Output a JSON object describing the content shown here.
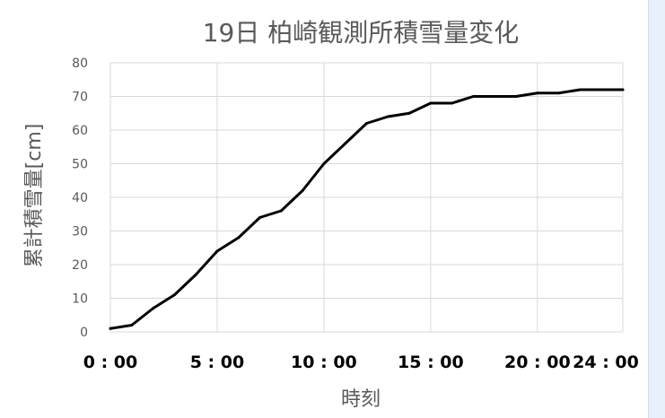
{
  "chart_data": {
    "type": "line",
    "title": "19日 柏崎観測所積雪量変化",
    "xlabel": "時刻",
    "ylabel": "累計積雪量[cm]",
    "x_ticks": [
      "0 : 00",
      "5 : 00",
      "10 : 00",
      "15 : 00",
      "20 : 00",
      "24 : 00"
    ],
    "x_tick_hours": [
      0,
      5,
      10,
      15,
      20,
      24
    ],
    "xlim": [
      0,
      24
    ],
    "ylim": [
      0,
      80
    ],
    "y_ticks": [
      0,
      10,
      20,
      30,
      40,
      50,
      60,
      70,
      80
    ],
    "grid": true,
    "series": [
      {
        "color": "#000000",
        "x": [
          0,
          1,
          2,
          3,
          4,
          5,
          6,
          7,
          8,
          9,
          10,
          11,
          12,
          13,
          14,
          15,
          16,
          17,
          18,
          19,
          20,
          21,
          22,
          23,
          24
        ],
        "values": [
          1,
          2,
          7,
          11,
          17,
          24,
          28,
          34,
          36,
          42,
          50,
          56,
          62,
          64,
          65,
          68,
          68,
          70,
          70,
          70,
          71,
          71,
          72,
          72,
          72
        ]
      }
    ]
  },
  "colors": {
    "line": "#000000",
    "grid": "#d9d9d9",
    "axis_text": "#595959",
    "bold_text": "#000000"
  }
}
